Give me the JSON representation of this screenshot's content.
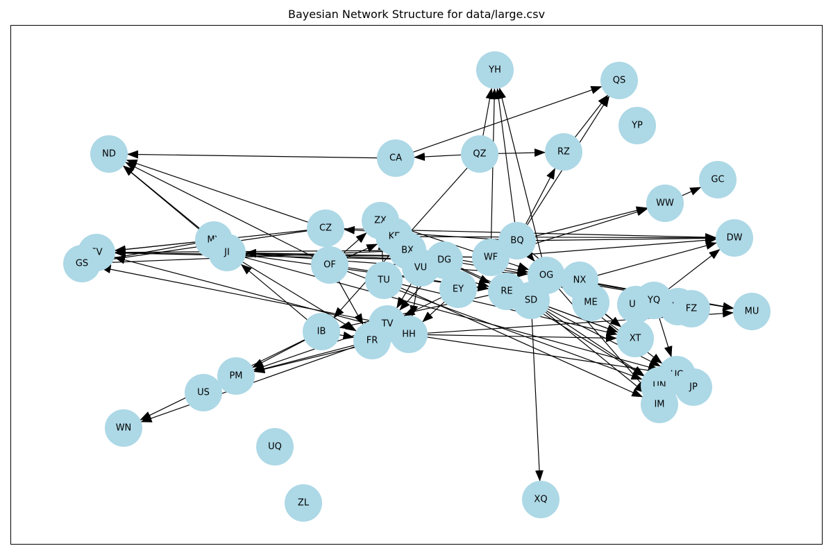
{
  "title": "Bayesian Network Structure for data/large.csv",
  "style": {
    "node_color": "#add8e6",
    "edge_color": "#000000"
  },
  "nodes": [
    "YH",
    "QS",
    "YP",
    "ND",
    "CA",
    "QZ",
    "RZ",
    "GC",
    "WW",
    "CZ",
    "ZX",
    "KE",
    "BQ",
    "DW",
    "MY",
    "EV",
    "GS",
    "JI",
    "BX",
    "OF",
    "DG",
    "WF",
    "VU",
    "OG",
    "NX",
    "TU",
    "EY",
    "RE",
    "SD",
    "ME",
    "UO",
    "YQ",
    "YR",
    "FZ",
    "MU",
    "IB",
    "TV",
    "HH",
    "FR",
    "XT",
    "UC",
    "PM",
    "UN",
    "JP",
    "US",
    "IM",
    "WN",
    "UQ",
    "XQ",
    "ZL"
  ],
  "edges": [
    [
      "CA",
      "ND"
    ],
    [
      "CA",
      "QS"
    ],
    [
      "QZ",
      "CA"
    ],
    [
      "QZ",
      "RZ"
    ],
    [
      "QZ",
      "YH"
    ],
    [
      "RZ",
      "QS"
    ],
    [
      "BQ",
      "QS"
    ],
    [
      "BQ",
      "RZ"
    ],
    [
      "BQ",
      "YH"
    ],
    [
      "WF",
      "YH"
    ],
    [
      "OG",
      "YH"
    ],
    [
      "BQ",
      "WW"
    ],
    [
      "WF",
      "WW"
    ],
    [
      "WW",
      "GC"
    ],
    [
      "MY",
      "ND"
    ],
    [
      "OF",
      "ND"
    ],
    [
      "CZ",
      "ND"
    ],
    [
      "JI",
      "ND"
    ],
    [
      "CZ",
      "EV"
    ],
    [
      "CZ",
      "GS"
    ],
    [
      "MY",
      "EV"
    ],
    [
      "MY",
      "GS"
    ],
    [
      "BX",
      "EV"
    ],
    [
      "BX",
      "GS"
    ],
    [
      "DG",
      "EV"
    ],
    [
      "WF",
      "EV"
    ],
    [
      "TV",
      "GS"
    ],
    [
      "HH",
      "EV"
    ],
    [
      "DG",
      "JI"
    ],
    [
      "WF",
      "JI"
    ],
    [
      "IB",
      "JI"
    ],
    [
      "OF",
      "ZX"
    ],
    [
      "OF",
      "KE"
    ],
    [
      "TU",
      "ZX"
    ],
    [
      "OF",
      "RE"
    ],
    [
      "OF",
      "FR"
    ],
    [
      "OF",
      "UN"
    ],
    [
      "JI",
      "OG"
    ],
    [
      "JI",
      "RE"
    ],
    [
      "JI",
      "FR"
    ],
    [
      "JI",
      "UC"
    ],
    [
      "TU",
      "XT"
    ],
    [
      "TU",
      "IM"
    ],
    [
      "BQ",
      "CZ"
    ],
    [
      "CZ",
      "DW"
    ],
    [
      "BQ",
      "DW"
    ],
    [
      "WF",
      "DW"
    ],
    [
      "KE",
      "DW"
    ],
    [
      "NX",
      "DW"
    ],
    [
      "YQ",
      "DW"
    ],
    [
      "ZX",
      "OG"
    ],
    [
      "BX",
      "OG"
    ],
    [
      "KE",
      "RE"
    ],
    [
      "VU",
      "RE"
    ],
    [
      "DG",
      "SD"
    ],
    [
      "RE",
      "XT"
    ],
    [
      "SD",
      "XT"
    ],
    [
      "SD",
      "UC"
    ],
    [
      "SD",
      "UN"
    ],
    [
      "SD",
      "IM"
    ],
    [
      "SD",
      "XQ"
    ],
    [
      "OG",
      "MU"
    ],
    [
      "OG",
      "UC"
    ],
    [
      "NX",
      "MU"
    ],
    [
      "ME",
      "XT"
    ],
    [
      "RE",
      "UN"
    ],
    [
      "DG",
      "MU"
    ],
    [
      "YQ",
      "UC"
    ],
    [
      "DG",
      "TV"
    ],
    [
      "EY",
      "TV"
    ],
    [
      "VU",
      "TV"
    ],
    [
      "EY",
      "HH"
    ],
    [
      "VU",
      "HH"
    ],
    [
      "RE",
      "IB"
    ],
    [
      "QZ",
      "IB"
    ],
    [
      "IB",
      "FR"
    ],
    [
      "IB",
      "PM"
    ],
    [
      "IB",
      "WN"
    ],
    [
      "TV",
      "PM"
    ],
    [
      "FR",
      "PM"
    ],
    [
      "FR",
      "WN"
    ],
    [
      "HH",
      "PM"
    ],
    [
      "HH",
      "XT"
    ],
    [
      "HH",
      "MU"
    ],
    [
      "HH",
      "UC"
    ],
    [
      "BQ",
      "OG"
    ],
    [
      "BQ",
      "XT"
    ],
    [
      "BQ",
      "IM"
    ]
  ]
}
